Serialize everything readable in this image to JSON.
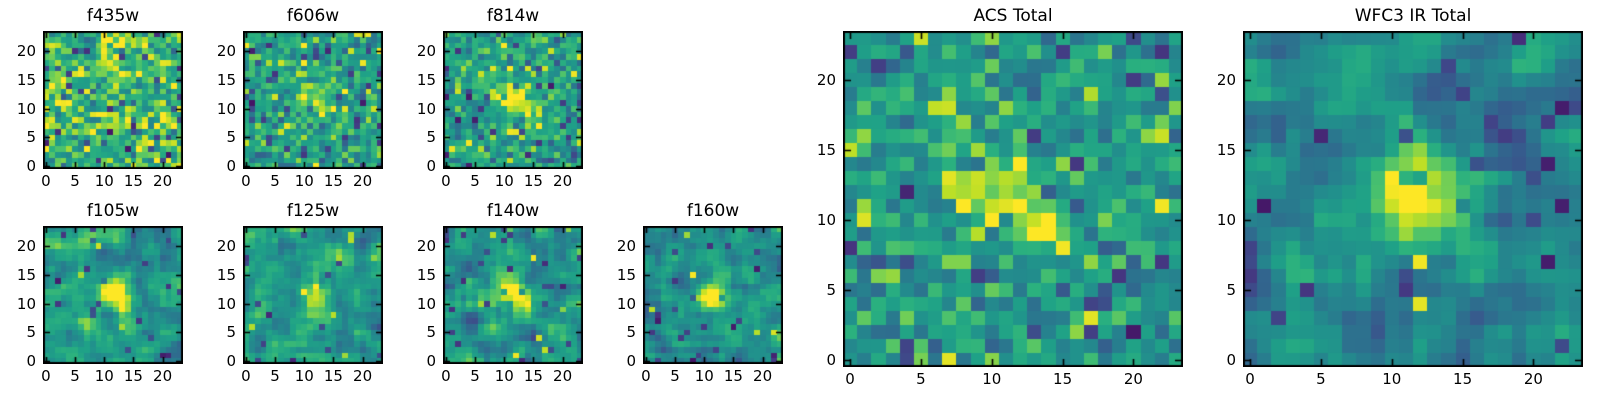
{
  "figure": {
    "background_color": "#ffffff",
    "axes_frame_color": "#000000",
    "tick_text_color": "#000000",
    "colormap_name": "viridis"
  },
  "chart_data": [
    {
      "type": "heatmap",
      "title": "f435w",
      "grid_size": [
        24,
        24
      ],
      "x_range": [
        -0.5,
        23.5
      ],
      "y_range": [
        -0.5,
        23.5
      ],
      "xticks": [
        0,
        5,
        10,
        15,
        20
      ],
      "yticks": [
        0,
        5,
        10,
        15,
        20
      ],
      "colormap": "viridis",
      "synthesis": {
        "seed": 11,
        "background_level": 0.68,
        "noise_sigma": 0.17,
        "dark_pixel_fraction": 0.05,
        "bright_pixel_fraction": 0.06,
        "smooth_passes": 0,
        "sources": []
      }
    },
    {
      "type": "heatmap",
      "title": "f606w",
      "grid_size": [
        24,
        24
      ],
      "x_range": [
        -0.5,
        23.5
      ],
      "y_range": [
        -0.5,
        23.5
      ],
      "xticks": [
        0,
        5,
        10,
        15,
        20
      ],
      "yticks": [
        0,
        5,
        10,
        15,
        20
      ],
      "colormap": "viridis",
      "synthesis": {
        "seed": 22,
        "background_level": 0.58,
        "noise_sigma": 0.14,
        "dark_pixel_fraction": 0.045,
        "bright_pixel_fraction": 0.035,
        "smooth_passes": 0,
        "sources": [
          {
            "x": 11.8,
            "y": 11.5,
            "amplitude": 0.4,
            "sigma_x": 2.2,
            "sigma_y": 1.2,
            "angle_deg": -38
          }
        ]
      }
    },
    {
      "type": "heatmap",
      "title": "f814w",
      "grid_size": [
        24,
        24
      ],
      "x_range": [
        -0.5,
        23.5
      ],
      "y_range": [
        -0.5,
        23.5
      ],
      "xticks": [
        0,
        5,
        10,
        15,
        20
      ],
      "yticks": [
        0,
        5,
        10,
        15,
        20
      ],
      "colormap": "viridis",
      "synthesis": {
        "seed": 33,
        "background_level": 0.58,
        "noise_sigma": 0.14,
        "dark_pixel_fraction": 0.05,
        "bright_pixel_fraction": 0.03,
        "smooth_passes": 0,
        "sources": [
          {
            "x": 11.5,
            "y": 11.8,
            "amplitude": 0.48,
            "sigma_x": 2.5,
            "sigma_y": 1.5,
            "angle_deg": -33
          }
        ]
      }
    },
    {
      "type": "heatmap",
      "title": "f105w",
      "grid_size": [
        24,
        24
      ],
      "x_range": [
        -0.5,
        23.5
      ],
      "y_range": [
        -0.5,
        23.5
      ],
      "xticks": [
        0,
        5,
        10,
        15,
        20
      ],
      "yticks": [
        0,
        5,
        10,
        15,
        20
      ],
      "colormap": "viridis",
      "synthesis": {
        "seed": 44,
        "background_level": 0.52,
        "noise_sigma": 0.3,
        "dark_pixel_fraction": 0.035,
        "bright_pixel_fraction": 0.01,
        "smooth_passes": 1,
        "sources": [
          {
            "x": 11.3,
            "y": 11.6,
            "amplitude": 0.52,
            "sigma_x": 2.7,
            "sigma_y": 1.5,
            "angle_deg": -42
          },
          {
            "x": 8.5,
            "y": 21.5,
            "amplitude": 0.18,
            "sigma_x": 2.0,
            "sigma_y": 1.3,
            "angle_deg": 0
          }
        ]
      }
    },
    {
      "type": "heatmap",
      "title": "f125w",
      "grid_size": [
        24,
        24
      ],
      "x_range": [
        -0.5,
        23.5
      ],
      "y_range": [
        -0.5,
        23.5
      ],
      "xticks": [
        0,
        5,
        10,
        15,
        20
      ],
      "yticks": [
        0,
        5,
        10,
        15,
        20
      ],
      "colormap": "viridis",
      "synthesis": {
        "seed": 55,
        "background_level": 0.54,
        "noise_sigma": 0.3,
        "dark_pixel_fraction": 0.035,
        "bright_pixel_fraction": 0.015,
        "smooth_passes": 1,
        "sources": [
          {
            "x": 11.8,
            "y": 11.4,
            "amplitude": 0.44,
            "sigma_x": 2.3,
            "sigma_y": 1.5,
            "angle_deg": -40
          }
        ]
      }
    },
    {
      "type": "heatmap",
      "title": "f140w",
      "grid_size": [
        24,
        24
      ],
      "x_range": [
        -0.5,
        23.5
      ],
      "y_range": [
        -0.5,
        23.5
      ],
      "xticks": [
        0,
        5,
        10,
        15,
        20
      ],
      "yticks": [
        0,
        5,
        10,
        15,
        20
      ],
      "colormap": "viridis",
      "synthesis": {
        "seed": 66,
        "background_level": 0.54,
        "noise_sigma": 0.32,
        "dark_pixel_fraction": 0.04,
        "bright_pixel_fraction": 0.02,
        "smooth_passes": 1,
        "sources": [
          {
            "x": 11.6,
            "y": 11.3,
            "amplitude": 0.5,
            "sigma_x": 2.8,
            "sigma_y": 1.7,
            "angle_deg": -35
          }
        ]
      }
    },
    {
      "type": "heatmap",
      "title": "f160w",
      "grid_size": [
        24,
        24
      ],
      "x_range": [
        -0.5,
        23.5
      ],
      "y_range": [
        -0.5,
        23.5
      ],
      "xticks": [
        0,
        5,
        10,
        15,
        20
      ],
      "yticks": [
        0,
        5,
        10,
        15,
        20
      ],
      "colormap": "viridis",
      "synthesis": {
        "seed": 77,
        "background_level": 0.5,
        "noise_sigma": 0.3,
        "dark_pixel_fraction": 0.045,
        "bright_pixel_fraction": 0.01,
        "smooth_passes": 1,
        "sources": [
          {
            "x": 11.6,
            "y": 11.3,
            "amplitude": 0.6,
            "sigma_x": 1.9,
            "sigma_y": 1.7,
            "angle_deg": -20
          }
        ]
      }
    },
    {
      "type": "heatmap",
      "title": "ACS Total",
      "grid_size": [
        24,
        24
      ],
      "x_range": [
        -0.5,
        23.5
      ],
      "y_range": [
        -0.5,
        23.5
      ],
      "xticks": [
        0,
        5,
        10,
        15,
        20
      ],
      "yticks": [
        0,
        5,
        10,
        15,
        20
      ],
      "colormap": "viridis",
      "synthesis": {
        "seed": 88,
        "background_level": 0.55,
        "noise_sigma": 0.14,
        "dark_pixel_fraction": 0.04,
        "bright_pixel_fraction": 0.03,
        "smooth_passes": 0,
        "sources": [
          {
            "x": 11.3,
            "y": 11.5,
            "amplitude": 0.48,
            "sigma_x": 2.9,
            "sigma_y": 1.3,
            "angle_deg": -38
          },
          {
            "x": 14.2,
            "y": 9.3,
            "amplitude": 0.25,
            "sigma_x": 1.1,
            "sigma_y": 0.9,
            "angle_deg": 0
          }
        ]
      }
    },
    {
      "type": "heatmap",
      "title": "WFC3 IR Total",
      "grid_size": [
        24,
        24
      ],
      "x_range": [
        -0.5,
        23.5
      ],
      "y_range": [
        -0.5,
        23.5
      ],
      "xticks": [
        0,
        5,
        10,
        15,
        20
      ],
      "yticks": [
        0,
        5,
        10,
        15,
        20
      ],
      "colormap": "viridis",
      "synthesis": {
        "seed": 99,
        "background_level": 0.43,
        "noise_sigma": 0.3,
        "dark_pixel_fraction": 0.04,
        "bright_pixel_fraction": 0.005,
        "smooth_passes": 1,
        "sources": [
          {
            "x": 12.0,
            "y": 11.5,
            "amplitude": 0.65,
            "sigma_x": 2.6,
            "sigma_y": 1.9,
            "angle_deg": -38
          },
          {
            "x": 8.8,
            "y": 21.8,
            "amplitude": 0.35,
            "sigma_x": 1.9,
            "sigma_y": 1.4,
            "angle_deg": 0
          }
        ]
      }
    }
  ]
}
